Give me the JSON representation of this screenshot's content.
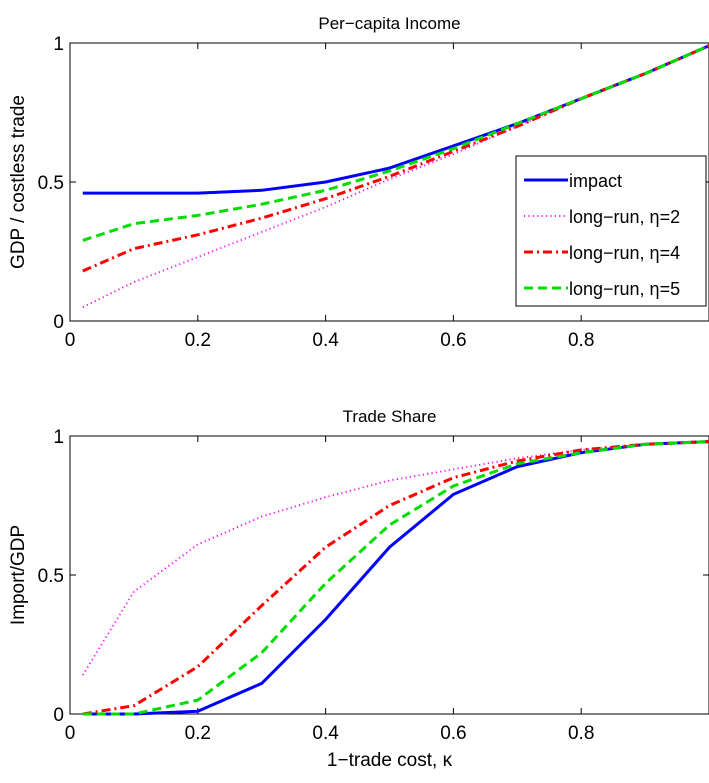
{
  "chart_data": [
    {
      "type": "line",
      "title": "Per−capita Income",
      "xlabel": "",
      "ylabel": "GDP / costless trade",
      "xlim": [
        0,
        1
      ],
      "ylim": [
        0,
        1
      ],
      "xticks": [
        0,
        0.2,
        0.4,
        0.6,
        0.8
      ],
      "xtick_labels": [
        "0",
        "0.2",
        "0.4",
        "0.6",
        "0.8"
      ],
      "yticks": [
        0,
        0.5,
        1
      ],
      "ytick_labels": [
        "0",
        "0.5",
        "1"
      ],
      "grid": false,
      "legend": "right-center",
      "x": [
        0.02,
        0.1,
        0.2,
        0.3,
        0.4,
        0.5,
        0.6,
        0.7,
        0.8,
        0.9,
        1.0
      ],
      "series": [
        {
          "name": "impact",
          "style": "solid",
          "color": "#0000ff",
          "values": [
            0.46,
            0.46,
            0.46,
            0.47,
            0.5,
            0.55,
            0.63,
            0.71,
            0.8,
            0.89,
            0.99
          ]
        },
        {
          "name": "long−run, η=2",
          "style": "dotted",
          "color": "#ff00ff",
          "values": [
            0.05,
            0.14,
            0.23,
            0.32,
            0.41,
            0.51,
            0.6,
            0.7,
            0.8,
            0.89,
            0.99
          ]
        },
        {
          "name": "long−run, η=4",
          "style": "dashdot",
          "color": "#ff0000",
          "values": [
            0.18,
            0.26,
            0.31,
            0.37,
            0.44,
            0.52,
            0.61,
            0.7,
            0.8,
            0.89,
            0.99
          ]
        },
        {
          "name": "long−run, η=5",
          "style": "dashed",
          "color": "#00dd00",
          "values": [
            0.29,
            0.35,
            0.38,
            0.42,
            0.47,
            0.54,
            0.62,
            0.71,
            0.8,
            0.89,
            0.99
          ]
        }
      ]
    },
    {
      "type": "line",
      "title": "Trade Share",
      "xlabel": "1−trade cost, κ",
      "ylabel": "Import/GDP",
      "xlim": [
        0,
        1
      ],
      "ylim": [
        0,
        1
      ],
      "xticks": [
        0,
        0.2,
        0.4,
        0.6,
        0.8
      ],
      "xtick_labels": [
        "0",
        "0.2",
        "0.4",
        "0.6",
        "0.8"
      ],
      "yticks": [
        0,
        0.5,
        1
      ],
      "ytick_labels": [
        "0",
        "0.5",
        "1"
      ],
      "grid": false,
      "x": [
        0.02,
        0.1,
        0.2,
        0.3,
        0.4,
        0.5,
        0.6,
        0.7,
        0.8,
        0.9,
        1.0
      ],
      "series": [
        {
          "name": "impact",
          "style": "solid",
          "color": "#0000ff",
          "values": [
            0,
            0,
            0.01,
            0.11,
            0.34,
            0.6,
            0.79,
            0.89,
            0.94,
            0.97,
            0.98
          ]
        },
        {
          "name": "long−run, η=2",
          "style": "dotted",
          "color": "#ff00ff",
          "values": [
            0.14,
            0.44,
            0.61,
            0.71,
            0.78,
            0.84,
            0.88,
            0.92,
            0.95,
            0.97,
            0.98
          ]
        },
        {
          "name": "long−run, η=4",
          "style": "dashdot",
          "color": "#ff0000",
          "values": [
            0,
            0.03,
            0.17,
            0.39,
            0.6,
            0.75,
            0.85,
            0.91,
            0.95,
            0.97,
            0.98
          ]
        },
        {
          "name": "long−run, η=5",
          "style": "dashed",
          "color": "#00dd00",
          "values": [
            0,
            0,
            0.05,
            0.22,
            0.47,
            0.68,
            0.82,
            0.9,
            0.94,
            0.97,
            0.98
          ]
        }
      ]
    }
  ]
}
